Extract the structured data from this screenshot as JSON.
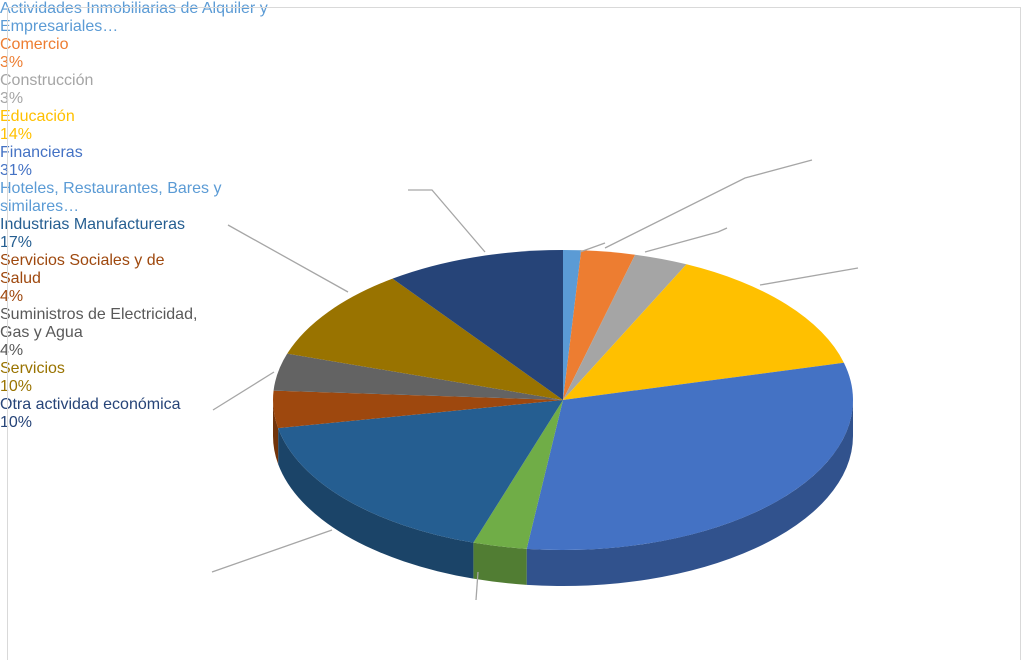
{
  "chart_data": {
    "type": "pie",
    "categories": [
      "Actividades Inmobiliarias de Alquiler y Empresariales…",
      "Comercio",
      "Construcción",
      "Educación",
      "Financieras",
      "Hoteles, Restaurantes, Bares y similares…",
      "Industrias Manufactureras",
      "Servicios Sociales y de Salud",
      "Suministros de Electricidad, Gas y Agua",
      "Servicios",
      "Otra actividad económica"
    ],
    "values": [
      1,
      3,
      3,
      14,
      31,
      3,
      17,
      4,
      4,
      10,
      10
    ],
    "value_labels": [
      null,
      "3%",
      "3%",
      "14%",
      "31%",
      null,
      "17%",
      "4%",
      "4%",
      "10%",
      "10%"
    ],
    "colors": [
      "#5b9bd5",
      "#ed7d31",
      "#a5a5a5",
      "#ffc000",
      "#4472c4",
      "#70ad47",
      "#255e91",
      "#9e480e",
      "#636363",
      "#997300",
      "#264478"
    ],
    "label_colors": [
      "#5b9bd5",
      "#ed7d31",
      "#a5a5a5",
      "#ffc000",
      "#4472c4",
      "#5b9bd5",
      "#255e91",
      "#9e480e",
      "#595959",
      "#997300",
      "#264478"
    ]
  }
}
